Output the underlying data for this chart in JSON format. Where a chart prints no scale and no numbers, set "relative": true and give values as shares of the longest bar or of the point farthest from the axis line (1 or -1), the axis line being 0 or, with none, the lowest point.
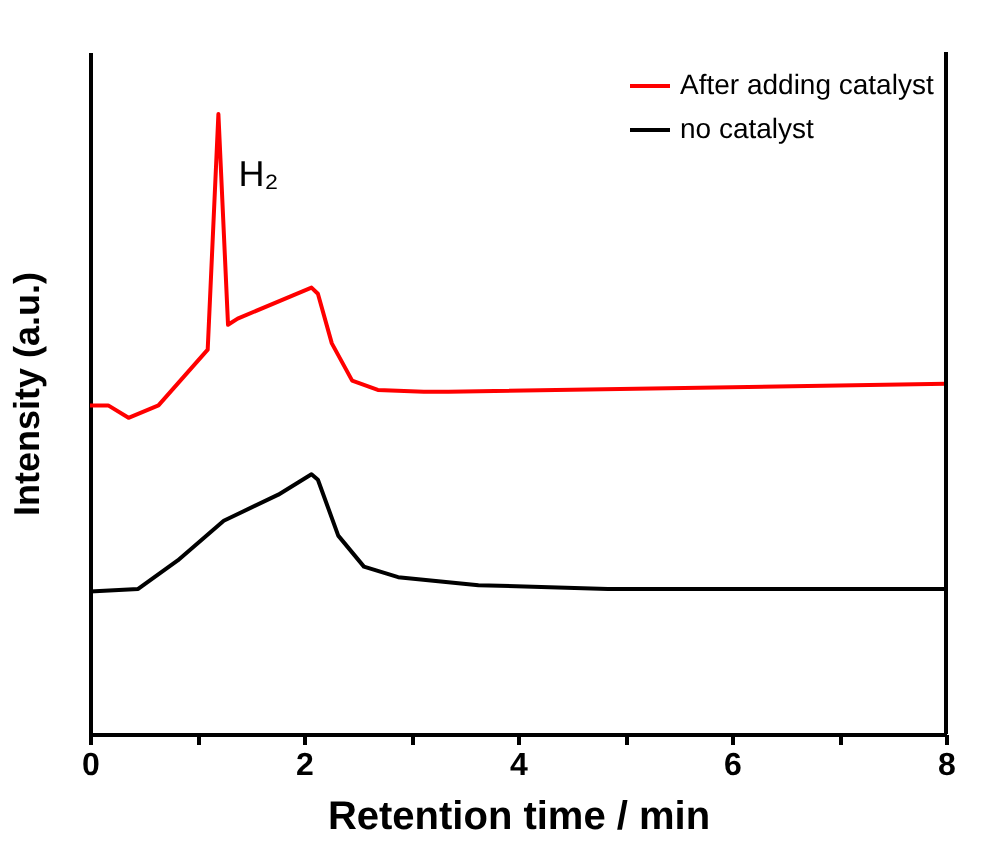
{
  "chart_data": {
    "type": "line",
    "xlabel": "Retention time / min",
    "ylabel": "Intensity (a.u.)",
    "relative": true,
    "xlim": [
      0,
      8
    ],
    "xticks": [
      0,
      {
        "value": 1,
        "label": null
      },
      2,
      {
        "value": 3,
        "label": null
      },
      4,
      {
        "value": 5,
        "label": null
      },
      6,
      {
        "value": 7,
        "label": null
      },
      8
    ],
    "legend": "top right",
    "grid": false,
    "marker": "none",
    "line_style": "solid",
    "annotations": [
      {
        "text": "H₂",
        "x": 1.2,
        "y": 1.0
      }
    ],
    "series": [
      {
        "name": "After adding catalyst",
        "color": "#ff0000",
        "x": [
          0,
          0.17,
          0.36,
          0.64,
          1.1,
          1.2,
          1.29,
          1.38,
          2.07,
          2.13,
          2.26,
          2.45,
          2.69,
          3.12,
          3.35,
          8
        ],
        "values": [
          0.53,
          0.53,
          0.51,
          0.53,
          0.62,
          1.0,
          0.66,
          0.67,
          0.72,
          0.71,
          0.63,
          0.57,
          0.555,
          0.552,
          0.552,
          0.565
        ]
      },
      {
        "name": "no catalyst",
        "color": "#000000",
        "x": [
          0,
          0.45,
          0.82,
          1.25,
          1.76,
          2.07,
          2.13,
          2.32,
          2.56,
          2.88,
          3.63,
          4.84,
          8
        ],
        "values": [
          0.23,
          0.234,
          0.28,
          0.344,
          0.386,
          0.419,
          0.41,
          0.32,
          0.27,
          0.253,
          0.24,
          0.234,
          0.234
        ]
      }
    ]
  }
}
